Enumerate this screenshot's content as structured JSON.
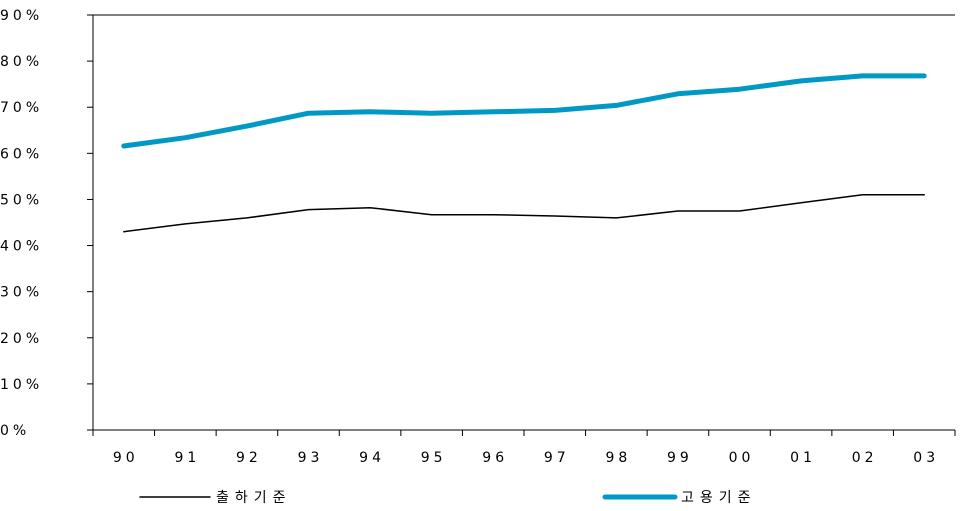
{
  "chart_data": {
    "type": "line",
    "categories": [
      "90",
      "91",
      "92",
      "93",
      "94",
      "95",
      "96",
      "97",
      "98",
      "99",
      "00",
      "01",
      "02",
      "03"
    ],
    "y_tick_labels": [
      "0%",
      "10%",
      "20%",
      "30%",
      "40%",
      "50%",
      "60%",
      "70%",
      "80%",
      "90%"
    ],
    "ylim": [
      0,
      90
    ],
    "grid": false,
    "legend_position": "bottom",
    "series": [
      {
        "name": "출하기준",
        "color": "#000000",
        "values": [
          43,
          44.7,
          46,
          47.8,
          48.2,
          46.7,
          46.7,
          46.4,
          46,
          47.5,
          47.5,
          49.3,
          51,
          51
        ]
      },
      {
        "name": "고용기준",
        "color": "#0099c6",
        "values": [
          61.6,
          63.4,
          65.9,
          68.7,
          69,
          68.7,
          69,
          69.3,
          70.4,
          72.9,
          73.9,
          75.7,
          76.8,
          76.8
        ]
      }
    ]
  }
}
